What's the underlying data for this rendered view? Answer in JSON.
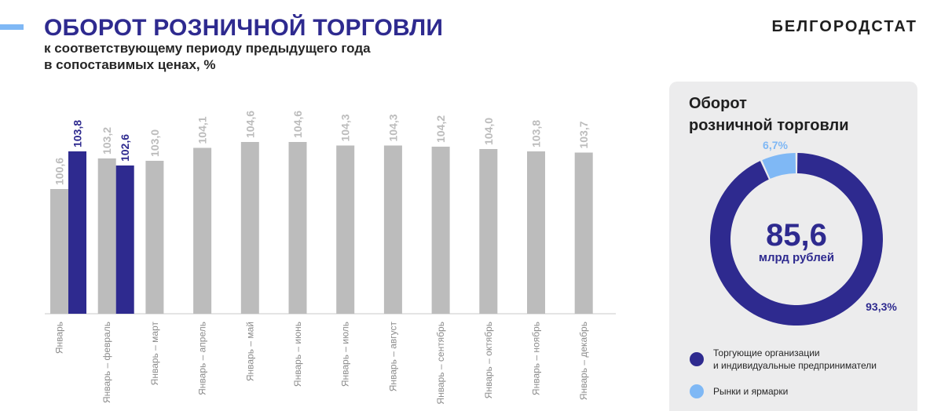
{
  "header": {
    "title": "ОБОРОТ РОЗНИЧНОЙ ТОРГОВЛИ",
    "subtitle_line1": "к соответствующему периоду предыдущего года",
    "subtitle_line2": "в сопоставимых ценах, %",
    "brand": "БЕЛГОРОДСТАТ"
  },
  "colors": {
    "accent": "#7fb8f5",
    "prev_year": "#bcbcbc",
    "current_year": "#2e2a8f",
    "light_blue": "#7fb8f5"
  },
  "chart_data": [
    {
      "type": "bar",
      "categories": [
        "Январь",
        "Январь – февраль",
        "Январь – март",
        "Январь – апрель",
        "Январь – май",
        "Январь – июнь",
        "Январь – июль",
        "Январь – август",
        "Январь – сентябрь",
        "Январь – октябрь",
        "Январь – ноябрь",
        "Январь – декабрь"
      ],
      "series": [
        {
          "values": [
            100.6,
            103.2,
            103.0,
            104.1,
            104.6,
            104.6,
            104.3,
            104.3,
            104.2,
            104.0,
            103.8,
            103.7
          ],
          "color": "#bcbcbc"
        },
        {
          "values": [
            103.8,
            102.6,
            null,
            null,
            null,
            null,
            null,
            null,
            null,
            null,
            null,
            null
          ],
          "color": "#2e2a8f"
        }
      ],
      "value_labels": [
        [
          "100,6",
          "103,2",
          "103,0",
          "104,1",
          "104,6",
          "104,6",
          "104,3",
          "104,3",
          "104,2",
          "104,0",
          "103,8",
          "103,7"
        ],
        [
          "103,8",
          "102,6",
          null,
          null,
          null,
          null,
          null,
          null,
          null,
          null,
          null,
          null
        ]
      ],
      "ylim": [
        90,
        106
      ],
      "grid": false,
      "legend": "none"
    },
    {
      "type": "pie",
      "title_line1": "Оборот",
      "title_line2": "розничной торговли",
      "center_value": "85,6",
      "center_unit": "млрд рублей",
      "slices": [
        {
          "label": "Торгующие организации\nи индивидуальные предприниматели",
          "value": 93.3,
          "value_label": "93,3%",
          "color": "#2e2a8f"
        },
        {
          "label": "Рынки и ярмарки",
          "value": 6.7,
          "value_label": "6,7%",
          "color": "#7fb8f5"
        }
      ],
      "legend": "bottom"
    }
  ]
}
